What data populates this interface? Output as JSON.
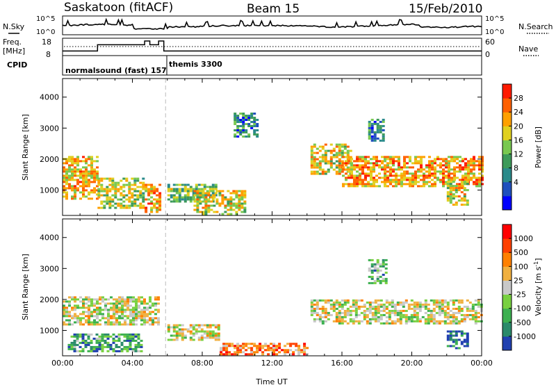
{
  "header": {
    "station": "Saskatoon (fitACF)",
    "beam": "Beam 15",
    "date": "15/Feb/2010"
  },
  "summary_panels": {
    "nsky_label": "N.Sky",
    "nsky_ticks": [
      "10^5",
      "10^0"
    ],
    "nsearch_label": "N.Search",
    "nsearch_ticks": [
      "10^5",
      "10^0"
    ],
    "freq_label_1": "Freq.",
    "freq_label_2": "[MHz]",
    "freq_ticks": [
      "18",
      "8"
    ],
    "nave_label": "Nave",
    "nave_ticks": [
      "60",
      "0"
    ],
    "cpid_label": "CPID",
    "cpid_segments": [
      {
        "text": "normalsound (fast) 157",
        "start": 0.0
      },
      {
        "text": "themis 3300",
        "start": 5.9
      }
    ]
  },
  "chart_data": [
    {
      "type": "heatmap",
      "panel": "power",
      "ylabel": "Slant Range [km]",
      "ylim": [
        180,
        4600
      ],
      "yticks": [
        1000,
        2000,
        3000,
        4000
      ],
      "xlim": [
        0,
        24
      ],
      "xtick_labels": [
        "00:00",
        "04:00",
        "08:00",
        "12:00",
        "16:00",
        "20:00",
        "00:00"
      ],
      "colorbar": {
        "label": "Power [dB]",
        "ticks": [
          "28",
          "24",
          "20",
          "16",
          "12",
          "8",
          "4"
        ],
        "colors": [
          "#0000ff",
          "#1f4fbd",
          "#2a8a8a",
          "#3c9a5a",
          "#78c850",
          "#e0d020",
          "#ffa000",
          "#ff6000",
          "#ff1a00"
        ]
      },
      "regions": [
        {
          "t0": 0.0,
          "t1": 2.0,
          "r0": 700,
          "r1": 2100,
          "level": 0.68
        },
        {
          "t0": 2.0,
          "t1": 4.6,
          "r0": 400,
          "r1": 1400,
          "level": 0.55
        },
        {
          "t0": 4.7,
          "t1": 5.5,
          "r0": 300,
          "r1": 1200,
          "level": 0.72
        },
        {
          "t0": 6.0,
          "t1": 8.8,
          "r0": 600,
          "r1": 1200,
          "level": 0.45
        },
        {
          "t0": 7.5,
          "t1": 10.5,
          "r0": 200,
          "r1": 1000,
          "level": 0.6
        },
        {
          "t0": 9.8,
          "t1": 11.2,
          "r0": 2700,
          "r1": 3500,
          "level": 0.28
        },
        {
          "t0": 14.2,
          "t1": 16.5,
          "r0": 1500,
          "r1": 2500,
          "level": 0.62
        },
        {
          "t0": 16.0,
          "t1": 24.0,
          "r0": 1100,
          "r1": 2100,
          "level": 0.72
        },
        {
          "t0": 22.0,
          "t1": 23.2,
          "r0": 500,
          "r1": 1300,
          "level": 0.6
        },
        {
          "t0": 17.5,
          "t1": 18.3,
          "r0": 2600,
          "r1": 3300,
          "level": 0.3
        }
      ]
    },
    {
      "type": "heatmap",
      "panel": "velocity",
      "ylabel": "Slant Range [km]",
      "ylim": [
        180,
        4600
      ],
      "yticks": [
        1000,
        2000,
        3000,
        4000
      ],
      "xlim": [
        0,
        24
      ],
      "xlabel": "Time UT",
      "xtick_labels": [
        "00:00",
        "04:00",
        "08:00",
        "12:00",
        "16:00",
        "20:00",
        "00:00"
      ],
      "colorbar": {
        "label_main": "Velocity [m s",
        "label_exp": "-1",
        "label_end": "]",
        "ticks": [
          "1000",
          "500",
          "100",
          "25",
          "-25",
          "-100",
          "-500",
          "-1000"
        ],
        "colors": [
          "#2040b0",
          "#2a8a6a",
          "#3cb050",
          "#78d040",
          "#c8c8c8",
          "#f0b040",
          "#ff8000",
          "#ff4000",
          "#ff0000"
        ]
      },
      "regions": [
        {
          "t0": 0.0,
          "t1": 5.5,
          "r0": 1200,
          "r1": 2100,
          "level": 0.5
        },
        {
          "t0": 0.3,
          "t1": 4.5,
          "r0": 350,
          "r1": 900,
          "level": 0.25
        },
        {
          "t0": 6.0,
          "t1": 9.0,
          "r0": 700,
          "r1": 1200,
          "level": 0.5
        },
        {
          "t0": 9.0,
          "t1": 14.0,
          "r0": 200,
          "r1": 600,
          "level": 0.7
        },
        {
          "t0": 14.2,
          "t1": 24.0,
          "r0": 1200,
          "r1": 2000,
          "level": 0.5
        },
        {
          "t0": 22.0,
          "t1": 23.2,
          "r0": 400,
          "r1": 1000,
          "level": 0.1
        },
        {
          "t0": 17.5,
          "t1": 18.5,
          "r0": 2500,
          "r1": 3300,
          "level": 0.3
        }
      ]
    }
  ]
}
